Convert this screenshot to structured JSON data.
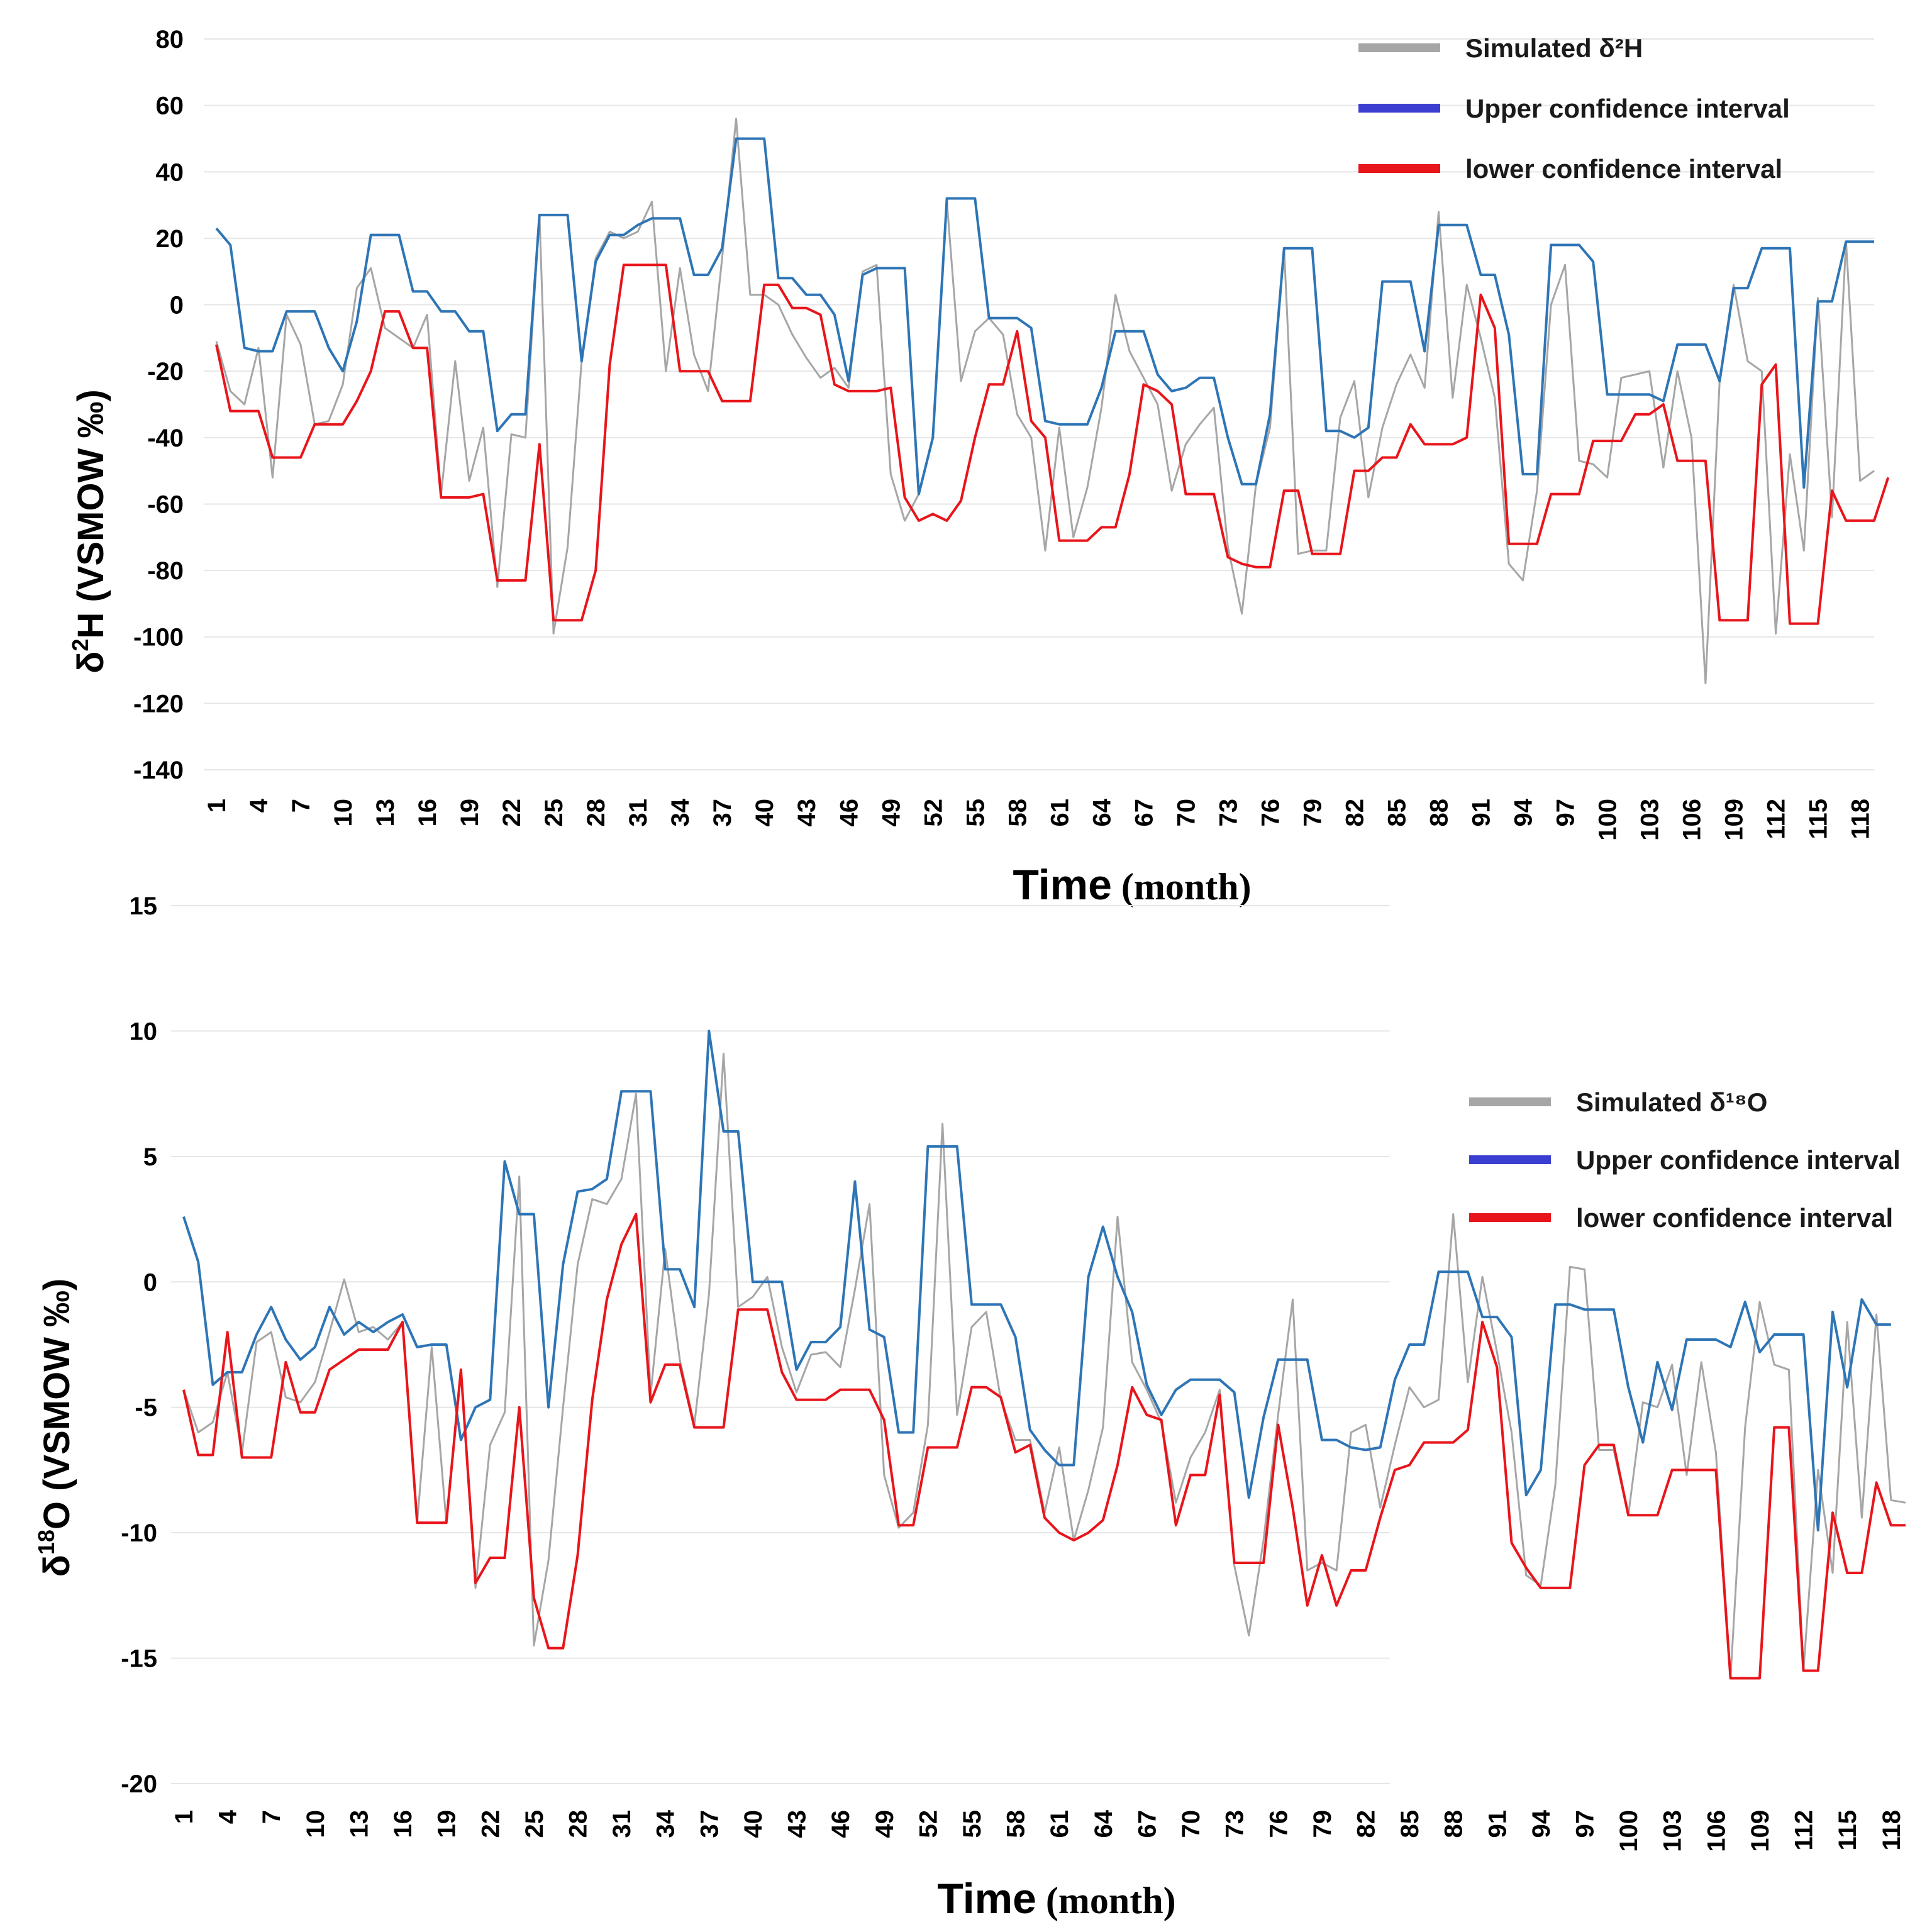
{
  "colors": {
    "simulated": "#a6a6a6",
    "upper": "#2e75b6",
    "lower": "#e8151b",
    "legend_upper": "#3b3fd1",
    "grid": "#e6e6e6"
  },
  "chart_data": [
    {
      "type": "line",
      "ylabel_main": "δ",
      "ylabel_sup": "2",
      "ylabel_rest": "H (VSMOW ‰)",
      "xlabel_bold": "Time",
      "xlabel_serif": " (month)",
      "ylim": [
        -140,
        80
      ],
      "yticks": [
        80,
        60,
        40,
        20,
        0,
        -20,
        -40,
        -60,
        -80,
        -100,
        -120,
        -140
      ],
      "xticks": [
        "1",
        "4",
        "7",
        "10",
        "13",
        "16",
        "19",
        "22",
        "25",
        "28",
        "31",
        "34",
        "37",
        "40",
        "43",
        "46",
        "49",
        "52",
        "55",
        "58",
        "61",
        "64",
        "67",
        "70",
        "73",
        "76",
        "79",
        "82",
        "85",
        "88",
        "91",
        "94",
        "97",
        "100",
        "103",
        "106",
        "109",
        "112",
        "115",
        "118"
      ],
      "legend": [
        {
          "label": "Simulated  δ²H",
          "key": "simulated"
        },
        {
          "label": "Upper confidence interval",
          "key": "legend_upper"
        },
        {
          "label": "lower confidence interval",
          "key": "lower"
        }
      ],
      "series": [
        {
          "name": "Simulated δ2H",
          "key": "simulated",
          "values": [
            -11,
            -26,
            -30,
            -13,
            -52,
            -3,
            -12,
            -36,
            -35,
            -24,
            5,
            11,
            -7,
            -10,
            -13,
            -3,
            -57,
            -17,
            -53,
            -37,
            -85,
            -39,
            -40,
            27,
            -99,
            -73,
            -17,
            14,
            22,
            20,
            22,
            31,
            -20,
            11,
            -15,
            -26,
            14,
            56,
            3,
            3,
            0,
            -9,
            -16,
            -22,
            -19,
            -25,
            10,
            12,
            -51,
            -65,
            -57,
            -40,
            31,
            -23,
            -8,
            -4,
            -9,
            -33,
            -40,
            -74,
            -37,
            -70,
            -55,
            -31,
            3,
            -14,
            -22,
            -30,
            -56,
            -42,
            -36,
            -31,
            -73,
            -93,
            -54,
            -37,
            17,
            -75,
            -74,
            -74,
            -34,
            -23,
            -58,
            -37,
            -24,
            -15,
            -25,
            28,
            -28,
            6,
            -10,
            -28,
            -78,
            -83,
            -56,
            0,
            12,
            -47,
            -48,
            -52,
            -22,
            -21,
            -20,
            -49,
            -20,
            -40,
            -114,
            -23,
            6,
            -17,
            -20,
            -99,
            -45,
            -74,
            2,
            -64,
            19,
            -53,
            -50
          ],
          "line_width": 3
        },
        {
          "name": "Upper confidence interval",
          "key": "upper",
          "values": [
            23,
            18,
            -13,
            -14,
            -14,
            -2,
            -2,
            -2,
            -13,
            -20,
            -5,
            21,
            21,
            21,
            4,
            4,
            -2,
            -2,
            -8,
            -8,
            -38,
            -33,
            -33,
            27,
            27,
            27,
            -17,
            13,
            21,
            21,
            24,
            26,
            26,
            26,
            9,
            9,
            17,
            50,
            50,
            50,
            8,
            8,
            3,
            3,
            -3,
            -23,
            9,
            11,
            11,
            11,
            -57,
            -40,
            32,
            32,
            32,
            -4,
            -4,
            -4,
            -7,
            -35,
            -36,
            -36,
            -36,
            -25,
            -8,
            -8,
            -8,
            -21,
            -26,
            -25,
            -22,
            -22,
            -40,
            -54,
            -54,
            -33,
            17,
            17,
            17,
            -38,
            -38,
            -40,
            -37,
            7,
            7,
            7,
            -14,
            24,
            24,
            24,
            9,
            9,
            -9,
            -51,
            -51,
            18,
            18,
            18,
            13,
            -27,
            -27,
            -27,
            -27,
            -29,
            -12,
            -12,
            -12,
            -23,
            5,
            5,
            17,
            17,
            17,
            -55,
            1,
            1,
            19,
            19,
            19
          ],
          "line_width": 4
        },
        {
          "name": "lower confidence interval",
          "key": "lower",
          "values": [
            -12,
            -32,
            -32,
            -32,
            -46,
            -46,
            -46,
            -36,
            -36,
            -36,
            -29,
            -20,
            -2,
            -2,
            -13,
            -13,
            -58,
            -58,
            -58,
            -57,
            -83,
            -83,
            -83,
            -42,
            -95,
            -95,
            -95,
            -80,
            -18,
            12,
            12,
            12,
            12,
            -20,
            -20,
            -20,
            -29,
            -29,
            -29,
            6,
            6,
            -1,
            -1,
            -3,
            -24,
            -26,
            -26,
            -26,
            -25,
            -58,
            -65,
            -63,
            -65,
            -59,
            -40,
            -24,
            -24,
            -8,
            -35,
            -40,
            -71,
            -71,
            -71,
            -67,
            -67,
            -51,
            -24,
            -26,
            -30,
            -57,
            -57,
            -57,
            -76,
            -78,
            -79,
            -79,
            -56,
            -56,
            -75,
            -75,
            -75,
            -50,
            -50,
            -46,
            -46,
            -36,
            -42,
            -42,
            -42,
            -40,
            3,
            -7,
            -72,
            -72,
            -72,
            -57,
            -57,
            -57,
            -41,
            -41,
            -41,
            -33,
            -33,
            -30,
            -47,
            -47,
            -47,
            -95,
            -95,
            -95,
            -24,
            -18,
            -96,
            -96,
            -96,
            -56,
            -65,
            -65,
            -65,
            -52
          ],
          "line_width": 4
        }
      ]
    },
    {
      "type": "line",
      "ylabel_main": "δ",
      "ylabel_sup": "18",
      "ylabel_rest": "O (VSMOW ‰)",
      "xlabel_bold": "Time",
      "xlabel_serif": " (month)",
      "ylim": [
        -20,
        15
      ],
      "yticks": [
        15,
        10,
        5,
        0,
        -5,
        -10,
        -15,
        -20
      ],
      "xticks": [
        "1",
        "4",
        "7",
        "10",
        "13",
        "16",
        "19",
        "22",
        "25",
        "28",
        "31",
        "34",
        "37",
        "40",
        "43",
        "46",
        "49",
        "52",
        "55",
        "58",
        "61",
        "64",
        "67",
        "70",
        "73",
        "76",
        "79",
        "82",
        "85",
        "88",
        "91",
        "94",
        "97",
        "100",
        "103",
        "106",
        "109",
        "112",
        "115",
        "118"
      ],
      "legend": [
        {
          "label": "Simulated  δ¹⁸O",
          "key": "simulated"
        },
        {
          "label": "Upper confidence interval",
          "key": "legend_upper"
        },
        {
          "label": "lower confidence interval",
          "key": "lower"
        }
      ],
      "series": [
        {
          "name": "Simulated δ18O",
          "key": "simulated",
          "values": [
            -4.3,
            -6,
            -5.6,
            -3.6,
            -6.8,
            -2.4,
            -2,
            -4.6,
            -4.8,
            -4,
            -2,
            0.1,
            -2,
            -1.8,
            -2.3,
            -1.6,
            -9.6,
            -2.6,
            -9.6,
            -3.6,
            -12.2,
            -6.5,
            -5.2,
            4.2,
            -14.5,
            -11.1,
            -5,
            0.7,
            3.3,
            3.1,
            4.1,
            7.5,
            -4.5,
            1.3,
            -3.1,
            -5.7,
            -0.5,
            9.1,
            -1,
            -0.6,
            0.2,
            -2.6,
            -4.4,
            -2.9,
            -2.8,
            -3.4,
            -0.3,
            3.1,
            -7.7,
            -9.8,
            -9.2,
            -5.7,
            6.3,
            -5.3,
            -1.8,
            -1.2,
            -4.7,
            -6.3,
            -6.3,
            -9.2,
            -6.6,
            -10.3,
            -8.3,
            -5.8,
            2.6,
            -3.2,
            -4.3,
            -5.6,
            -8.8,
            -7,
            -6,
            -4.3,
            -11.3,
            -14.1,
            -10.3,
            -5.3,
            -0.7,
            -11.5,
            -11.2,
            -11.5,
            -6,
            -5.7,
            -9,
            -6.5,
            -4.2,
            -5,
            -4.7,
            2.7,
            -4,
            0.2,
            -2.8,
            -6,
            -11.7,
            -12.1,
            -8.1,
            0.6,
            0.5,
            -6.7,
            -6.7,
            -9.3,
            -4.8,
            -5,
            -3.3,
            -7.7,
            -3.2,
            -6.8,
            -15.8,
            -5.8,
            -0.8,
            -3.3,
            -3.5,
            -15.5,
            -7.5,
            -11.6,
            -1.6,
            -9.4,
            -1.3,
            -8.7,
            -8.8
          ],
          "line_width": 3
        },
        {
          "name": "Upper confidence interval",
          "key": "upper",
          "values": [
            2.6,
            0.8,
            -4.1,
            -3.6,
            -3.6,
            -2.1,
            -1,
            -2.3,
            -3.1,
            -2.6,
            -1,
            -2.1,
            -1.6,
            -2,
            -1.6,
            -1.3,
            -2.6,
            -2.5,
            -2.5,
            -6.3,
            -5,
            -4.7,
            4.8,
            2.7,
            2.7,
            -5,
            0.7,
            3.6,
            3.7,
            4.1,
            7.6,
            7.6,
            7.6,
            0.5,
            0.5,
            -1,
            10,
            6,
            6,
            0,
            0,
            0,
            -3.5,
            -2.4,
            -2.4,
            -1.8,
            4,
            -1.9,
            -2.2,
            -6,
            -6,
            5.4,
            5.4,
            5.4,
            -0.9,
            -0.9,
            -0.9,
            -2.2,
            -5.9,
            -6.7,
            -7.3,
            -7.3,
            0.2,
            2.2,
            0.2,
            -1.2,
            -4.1,
            -5.3,
            -4.3,
            -3.9,
            -3.9,
            -3.9,
            -4.4,
            -8.6,
            -5.4,
            -3.1,
            -3.1,
            -3.1,
            -6.3,
            -6.3,
            -6.6,
            -6.7,
            -6.6,
            -3.9,
            -2.5,
            -2.5,
            0.4,
            0.4,
            0.4,
            -1.4,
            -1.4,
            -2.2,
            -8.5,
            -7.5,
            -0.9,
            -0.9,
            -1.1,
            -1.1,
            -1.1,
            -4.2,
            -6.4,
            -3.2,
            -5.1,
            -2.3,
            -2.3,
            -2.3,
            -2.6,
            -0.8,
            -2.8,
            -2.1,
            -2.1,
            -2.1,
            -9.9,
            -1.2,
            -4.2,
            -0.7,
            -1.7,
            -1.7
          ],
          "line_width": 4
        },
        {
          "name": "lower confidence interval",
          "key": "lower",
          "values": [
            -4.3,
            -6.9,
            -6.9,
            -2,
            -7,
            -7,
            -7,
            -3.2,
            -5.2,
            -5.2,
            -3.5,
            -3.1,
            -2.7,
            -2.7,
            -2.7,
            -1.6,
            -9.6,
            -9.6,
            -9.6,
            -3.5,
            -12,
            -11,
            -11,
            -5,
            -12.6,
            -14.6,
            -14.6,
            -10.9,
            -4.7,
            -0.7,
            1.5,
            2.7,
            -4.8,
            -3.3,
            -3.3,
            -5.8,
            -5.8,
            -5.8,
            -1.1,
            -1.1,
            -1.1,
            -3.6,
            -4.7,
            -4.7,
            -4.7,
            -4.3,
            -4.3,
            -4.3,
            -5.5,
            -9.7,
            -9.7,
            -6.6,
            -6.6,
            -6.6,
            -4.2,
            -4.2,
            -4.6,
            -6.8,
            -6.5,
            -9.4,
            -10,
            -10.3,
            -10,
            -9.5,
            -7.3,
            -4.2,
            -5.3,
            -5.5,
            -9.7,
            -7.7,
            -7.7,
            -4.5,
            -11.2,
            -11.2,
            -11.2,
            -5.7,
            -9,
            -12.9,
            -10.9,
            -12.9,
            -11.5,
            -11.5,
            -9.4,
            -7.5,
            -7.3,
            -6.4,
            -6.4,
            -6.4,
            -5.9,
            -1.6,
            -3.4,
            -10.4,
            -11.4,
            -12.2,
            -12.2,
            -12.2,
            -7.3,
            -6.5,
            -6.5,
            -9.3,
            -9.3,
            -9.3,
            -7.5,
            -7.5,
            -7.5,
            -7.5,
            -15.8,
            -15.8,
            -15.8,
            -5.8,
            -5.8,
            -15.5,
            -15.5,
            -9.2,
            -11.6,
            -11.6,
            -8,
            -9.7,
            -9.7
          ],
          "line_width": 4
        }
      ]
    }
  ]
}
